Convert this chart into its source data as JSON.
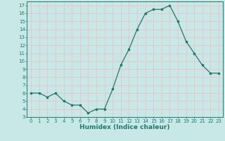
{
  "x": [
    0,
    1,
    2,
    3,
    4,
    5,
    6,
    7,
    8,
    9,
    10,
    11,
    12,
    13,
    14,
    15,
    16,
    17,
    18,
    19,
    20,
    21,
    22,
    23
  ],
  "y": [
    6.0,
    6.0,
    5.5,
    6.0,
    5.0,
    4.5,
    4.5,
    3.5,
    4.0,
    4.0,
    6.5,
    9.5,
    11.5,
    14.0,
    16.0,
    16.5,
    16.5,
    17.0,
    15.0,
    12.5,
    11.0,
    9.5,
    8.5,
    8.5
  ],
  "line_color": "#1a7a6e",
  "marker": "s",
  "markersize": 1.8,
  "linewidth": 0.9,
  "xlabel": "Humidex (Indice chaleur)",
  "xlim": [
    -0.5,
    23.5
  ],
  "ylim": [
    3,
    17.5
  ],
  "yticks": [
    3,
    4,
    5,
    6,
    7,
    8,
    9,
    10,
    11,
    12,
    13,
    14,
    15,
    16,
    17
  ],
  "xticks": [
    0,
    1,
    2,
    3,
    4,
    5,
    6,
    7,
    8,
    9,
    10,
    11,
    12,
    13,
    14,
    15,
    16,
    17,
    18,
    19,
    20,
    21,
    22,
    23
  ],
  "bg_color": "#c8e8e8",
  "grid_color": "#e8c8c8",
  "tick_color": "#1a7a6e",
  "tick_label_color": "#1a7a6e",
  "axis_label_color": "#1a7a6e",
  "tick_fontsize": 5.0,
  "label_fontsize": 6.5
}
